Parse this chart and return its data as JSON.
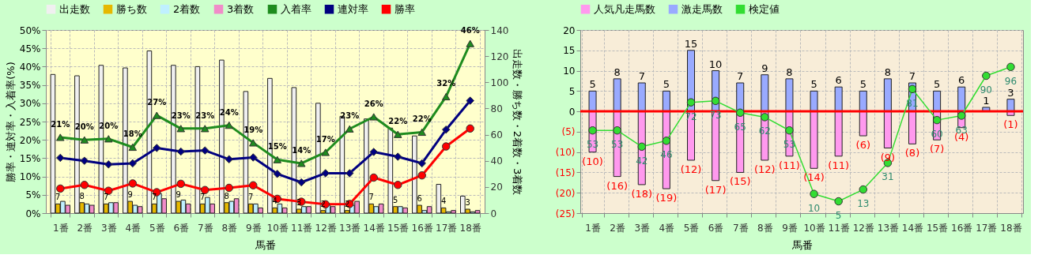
{
  "chart_data": [
    {
      "type": "bar",
      "xlabel": "馬番",
      "ylabel": "勝率・連対率・入着率(%)",
      "y2label": "出走数・勝ち数・2着数・3着数",
      "grid": true,
      "legend": "top",
      "categories": [
        "1番",
        "2番",
        "3番",
        "4番",
        "5番",
        "6番",
        "7番",
        "8番",
        "9番",
        "10番",
        "11番",
        "12番",
        "13番",
        "14番",
        "15番",
        "16番",
        "17番",
        "18番"
      ],
      "ylim": [
        0,
        50
      ],
      "yticks": [
        {
          "value": 0,
          "label": "0%"
        },
        {
          "value": 5,
          "label": "5%"
        },
        {
          "value": 10,
          "label": "10%"
        },
        {
          "value": 15,
          "label": "15%"
        },
        {
          "value": 20,
          "label": "20%"
        },
        {
          "value": 25,
          "label": "25%"
        },
        {
          "value": 30,
          "label": "30%"
        },
        {
          "value": 35,
          "label": "35%"
        },
        {
          "value": 40,
          "label": "40%"
        },
        {
          "value": 45,
          "label": "45%"
        },
        {
          "value": 50,
          "label": "50%"
        }
      ],
      "y2lim": [
        0,
        140
      ],
      "y2ticks": [
        0,
        20,
        40,
        60,
        80,
        100,
        120,
        140
      ],
      "series": [
        {
          "name": "出走数",
          "type": "bar",
          "axis": "y2",
          "color": "#f0f0f0",
          "values": [
            106,
            105,
            113,
            111,
            124,
            113,
            112,
            117,
            93,
            103,
            96,
            84,
            74,
            72,
            65,
            59,
            22,
            13
          ]
        },
        {
          "name": "勝ち数",
          "type": "bar",
          "axis": "y2",
          "color": "#e6b800",
          "values": [
            7,
            8,
            7,
            9,
            7,
            9,
            7,
            8,
            7,
            4,
            3,
            2,
            2,
            7,
            5,
            6,
            4,
            3
          ],
          "value_labels": [
            "7",
            "8",
            "7",
            "9",
            "7",
            "9",
            "7",
            "8",
            "7",
            "4",
            "3",
            "2",
            "2",
            "7",
            "5",
            "6",
            "4",
            "3"
          ]
        },
        {
          "name": "2着数",
          "type": "bar",
          "axis": "y2",
          "color": "#bff0ff",
          "values": [
            9,
            7,
            8,
            6,
            15,
            10,
            12,
            9,
            7,
            7,
            5,
            7,
            6,
            5,
            5,
            2,
            1,
            1
          ]
        },
        {
          "name": "3着数",
          "type": "bar",
          "axis": "y2",
          "color": "#f08cc8",
          "values": [
            6,
            6,
            8,
            5,
            11,
            7,
            7,
            11,
            4,
            4,
            5,
            5,
            9,
            7,
            4,
            5,
            2,
            2
          ]
        },
        {
          "name": "入着率",
          "type": "line",
          "axis": "y",
          "color": "#1e8c1e",
          "marker": "triangle",
          "values": [
            20.7,
            20.0,
            20.3,
            18.0,
            26.7,
            23.1,
            23.1,
            24.0,
            19.2,
            14.6,
            13.6,
            16.6,
            23.0,
            26.3,
            21.5,
            22.1,
            31.8,
            46.3
          ],
          "value_labels": [
            "21%",
            "20%",
            "20%",
            "18%",
            "27%",
            "23%",
            "23%",
            "24%",
            "19%",
            "15%",
            "14%",
            "17%",
            "23%",
            "26%",
            "22%",
            "22%",
            "32%",
            "46%"
          ]
        },
        {
          "name": "連対率",
          "type": "line",
          "axis": "y",
          "color": "#000080",
          "marker": "diamond",
          "values": [
            15.1,
            14.3,
            13.3,
            13.6,
            17.8,
            16.8,
            17.1,
            14.7,
            15.2,
            10.7,
            8.4,
            10.9,
            10.9,
            16.7,
            15.4,
            13.6,
            22.8,
            30.7
          ]
        },
        {
          "name": "勝率",
          "type": "line",
          "axis": "y",
          "color": "#ff0000",
          "marker": "circle",
          "values": [
            6.7,
            7.7,
            6.1,
            8.1,
            5.7,
            8.0,
            6.3,
            6.9,
            7.6,
            3.9,
            3.1,
            2.4,
            2.5,
            9.7,
            7.7,
            10.3,
            18.2,
            23.1
          ]
        }
      ]
    },
    {
      "type": "bar",
      "stacked": true,
      "xlabel": "馬番",
      "grid": true,
      "legend": "top",
      "tick_labels": "xy",
      "categories": [
        "1番",
        "2番",
        "3番",
        "4番",
        "5番",
        "6番",
        "7番",
        "8番",
        "9番",
        "10番",
        "11番",
        "12番",
        "13番",
        "14番",
        "15番",
        "16番",
        "17番",
        "18番"
      ],
      "ylim": [
        -25,
        20
      ],
      "yticks": [
        20,
        15,
        10,
        5,
        0,
        {
          "value": -5,
          "label": "(5)"
        },
        {
          "value": -10,
          "label": "(10)"
        },
        {
          "value": -15,
          "label": "(15)"
        },
        {
          "value": -20,
          "label": "(20)"
        },
        {
          "value": -25,
          "label": "(25)"
        }
      ],
      "y2lim": [
        -3,
        121
      ],
      "ref_lines": [
        {
          "axis": "y",
          "value": 0,
          "color": "#ff0000"
        }
      ],
      "series": [
        {
          "name": "人気凡走馬数",
          "type": "bar",
          "color": "#ff99ee",
          "values": [
            -10,
            -16,
            -18,
            -19,
            -12,
            -17,
            -15,
            -12,
            -11,
            -14,
            -11,
            -6,
            -9,
            -8,
            -7,
            -4,
            0,
            -1
          ],
          "value_labels": [
            "(10)",
            "(16)",
            "(18)",
            "(19)",
            "(12)",
            "(17)",
            "(15)",
            "(12)",
            "(11)",
            "(14)",
            "(11)",
            "(6)",
            "(9)",
            "(8)",
            "(7)",
            "(4)",
            null,
            "(1)"
          ]
        },
        {
          "name": "激走馬数",
          "type": "bar",
          "color": "#99aaff",
          "values": [
            5,
            8,
            7,
            5,
            15,
            10,
            7,
            9,
            8,
            5,
            6,
            5,
            8,
            7,
            5,
            6,
            1,
            3
          ],
          "value_labels": [
            "5",
            "8",
            "7",
            "5",
            "15",
            "10",
            "7",
            "9",
            "8",
            "5",
            "6",
            "5",
            "8",
            "7",
            "5",
            "6",
            "1",
            "3"
          ]
        },
        {
          "name": "検定値",
          "type": "line",
          "axis": "y2",
          "color": "#33dd33",
          "marker": "circle",
          "values": [
            53,
            53,
            42,
            46,
            72,
            73,
            65,
            62,
            53,
            10,
            5,
            13,
            31,
            81,
            60,
            63,
            90,
            96
          ],
          "value_labels": [
            "53",
            "53",
            "42",
            "46",
            "72",
            "73",
            "65",
            "62",
            "53",
            "10",
            "5",
            "13",
            "31",
            "81",
            "60",
            "63",
            "90",
            "96"
          ]
        }
      ]
    }
  ]
}
